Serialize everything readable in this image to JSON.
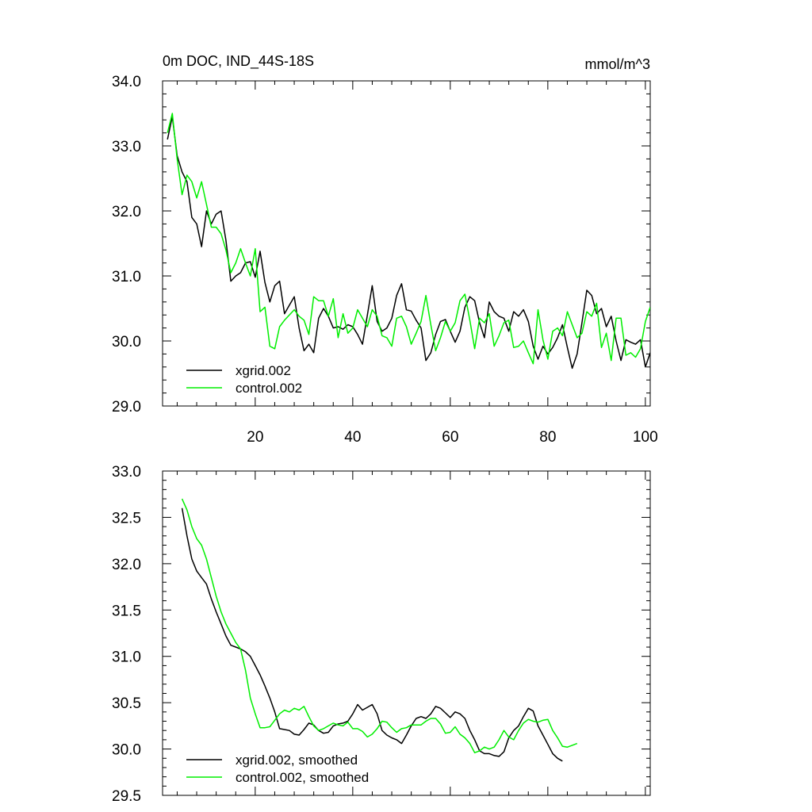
{
  "chart_data": [
    {
      "type": "line",
      "title_left": "0m DOC, IND_44S-18S",
      "title_right": "mmol/m^3",
      "xlabel": "",
      "ylabel": "",
      "xlim": [
        1,
        101
      ],
      "ylim": [
        29.0,
        34.0
      ],
      "x_ticks": [
        20,
        40,
        60,
        80,
        100
      ],
      "x_tick_labels": [
        "20",
        "40",
        "60",
        "80",
        "100"
      ],
      "y_ticks": [
        29.0,
        30.0,
        31.0,
        32.0,
        33.0,
        34.0
      ],
      "y_tick_labels": [
        "29.0",
        "30.0",
        "31.0",
        "32.0",
        "33.0",
        "34.0"
      ],
      "grid": false,
      "legend_position": "bottom-left",
      "x_start": 2,
      "series": [
        {
          "name": "xgrid.002",
          "color": "#000000",
          "values": [
            33.1,
            33.45,
            32.85,
            32.6,
            32.45,
            31.9,
            31.8,
            31.45,
            32.0,
            31.8,
            31.95,
            32.0,
            31.55,
            30.92,
            31.0,
            31.05,
            31.2,
            31.22,
            30.98,
            31.38,
            30.9,
            30.6,
            30.85,
            30.92,
            30.42,
            30.55,
            30.68,
            30.2,
            29.85,
            29.95,
            29.82,
            30.35,
            30.5,
            30.38,
            30.2,
            30.22,
            30.18,
            30.25,
            30.22,
            30.1,
            29.95,
            30.4,
            30.85,
            30.3,
            30.15,
            30.2,
            30.35,
            30.7,
            30.88,
            30.48,
            30.46,
            30.32,
            30.2,
            29.7,
            29.82,
            30.1,
            30.3,
            30.33,
            30.15,
            29.98,
            30.15,
            30.52,
            30.68,
            30.62,
            30.28,
            30.05,
            30.6,
            30.45,
            30.38,
            30.35,
            30.15,
            30.45,
            30.38,
            30.48,
            30.3,
            29.92,
            29.72,
            29.92,
            29.8,
            29.9,
            30.05,
            30.25,
            29.9,
            29.58,
            29.8,
            30.28,
            30.78,
            30.7,
            30.42,
            30.5,
            30.22,
            30.38,
            30.0,
            29.7,
            30.02,
            29.98,
            29.95,
            30.02,
            29.6,
            29.82
          ]
        },
        {
          "name": "control.002",
          "color": "#00ee00",
          "values": [
            33.2,
            33.5,
            32.8,
            32.25,
            32.55,
            32.45,
            32.2,
            32.45,
            32.1,
            31.75,
            31.75,
            31.65,
            31.4,
            31.05,
            31.2,
            31.42,
            31.2,
            31.0,
            31.42,
            30.45,
            30.52,
            29.92,
            29.88,
            30.22,
            30.32,
            30.4,
            30.48,
            30.38,
            30.32,
            30.1,
            30.68,
            30.62,
            30.62,
            30.38,
            30.65,
            30.05,
            30.42,
            30.12,
            30.2,
            30.48,
            30.35,
            30.22,
            30.48,
            30.38,
            30.08,
            30.05,
            29.92,
            30.35,
            30.38,
            30.22,
            29.95,
            30.12,
            30.3,
            30.7,
            30.25,
            29.85,
            30.05,
            30.3,
            30.15,
            30.28,
            30.62,
            30.72,
            30.32,
            29.88,
            30.35,
            30.28,
            30.42,
            29.92,
            30.08,
            30.28,
            30.32,
            29.9,
            29.92,
            30.0,
            29.82,
            29.65,
            30.48,
            30.02,
            29.72,
            30.15,
            30.2,
            30.08,
            30.45,
            30.25,
            30.05,
            30.12,
            30.45,
            30.38,
            30.58,
            29.9,
            30.12,
            29.7,
            30.35,
            30.35,
            29.78,
            29.82,
            29.75,
            29.88,
            30.3,
            30.52
          ]
        }
      ]
    },
    {
      "type": "line",
      "title": "",
      "xlabel": "",
      "ylabel": "",
      "xlim": [
        1,
        101
      ],
      "ylim": [
        29.5,
        33.0
      ],
      "x_ticks": [
        20,
        40,
        60,
        80,
        100
      ],
      "y_ticks": [
        29.5,
        30.0,
        30.5,
        31.0,
        31.5,
        32.0,
        32.5,
        33.0
      ],
      "y_tick_labels": [
        "29.5",
        "30.0",
        "30.5",
        "31.0",
        "31.5",
        "32.0",
        "32.5",
        "33.0"
      ],
      "grid": false,
      "legend_position": "bottom-left",
      "x_start": 5,
      "series": [
        {
          "name": "xgrid.002, smoothed",
          "color": "#000000",
          "values": [
            32.6,
            32.3,
            32.05,
            31.92,
            31.85,
            31.78,
            31.62,
            31.48,
            31.35,
            31.22,
            31.12,
            31.1,
            31.08,
            31.05,
            31.0,
            30.9,
            30.8,
            30.68,
            30.55,
            30.4,
            30.22,
            30.21,
            30.2,
            30.16,
            30.15,
            30.21,
            30.28,
            30.26,
            30.2,
            30.17,
            30.18,
            30.25,
            30.27,
            30.28,
            30.3,
            30.38,
            30.48,
            30.42,
            30.45,
            30.48,
            30.38,
            30.2,
            30.15,
            30.12,
            30.1,
            30.06,
            30.15,
            30.25,
            30.33,
            30.35,
            30.33,
            30.38,
            30.46,
            30.44,
            30.39,
            30.34,
            30.4,
            30.38,
            30.33,
            30.2,
            30.1,
            29.98,
            29.95,
            29.95,
            29.93,
            29.92,
            29.97,
            30.12,
            30.2,
            30.25,
            30.35,
            30.44,
            30.41,
            30.25,
            30.15,
            30.05,
            29.95,
            29.9,
            29.87
          ]
        },
        {
          "name": "control.002, smoothed",
          "color": "#00ee00",
          "values": [
            32.7,
            32.58,
            32.4,
            32.27,
            32.2,
            32.05,
            31.85,
            31.65,
            31.48,
            31.35,
            31.25,
            31.15,
            31.08,
            30.85,
            30.55,
            30.38,
            30.23,
            30.23,
            30.24,
            30.31,
            30.38,
            30.42,
            30.4,
            30.44,
            30.42,
            30.46,
            30.35,
            30.25,
            30.2,
            30.22,
            30.25,
            30.28,
            30.26,
            30.25,
            30.29,
            30.22,
            30.22,
            30.19,
            30.13,
            30.16,
            30.22,
            30.3,
            30.29,
            30.23,
            30.18,
            30.22,
            30.23,
            30.26,
            30.26,
            30.26,
            30.3,
            30.33,
            30.33,
            30.27,
            30.17,
            30.18,
            30.24,
            30.16,
            30.12,
            30.06,
            29.96,
            29.98,
            30.02,
            30.0,
            30.02,
            30.1,
            30.2,
            30.13,
            30.1,
            30.2,
            30.28,
            30.32,
            30.3,
            30.29,
            30.31,
            30.32,
            30.2,
            30.12,
            30.03,
            30.02,
            30.04,
            30.06
          ]
        }
      ]
    }
  ]
}
